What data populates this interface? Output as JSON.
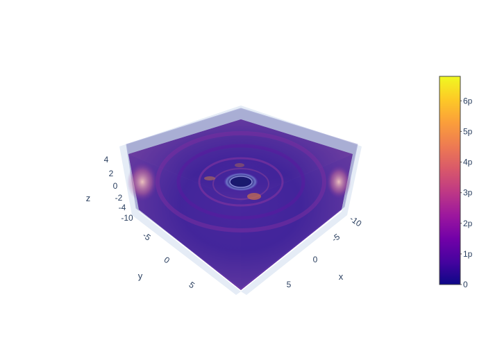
{
  "chart_data": {
    "type": "volume",
    "title": "",
    "scene": {
      "x_axis": {
        "label": "x",
        "ticks": [
          "-10",
          "-5",
          "0",
          "5"
        ],
        "range": [
          -12,
          8
        ]
      },
      "y_axis": {
        "label": "y",
        "ticks": [
          "-10",
          "-5",
          "0",
          "5"
        ],
        "range": [
          -12,
          8
        ]
      },
      "z_axis": {
        "label": "z",
        "ticks": [
          "-4",
          "-2",
          "0",
          "2",
          "4"
        ],
        "range": [
          -5,
          5
        ]
      },
      "background": "#e5ecf6"
    },
    "colorbar": {
      "ticks": [
        "0",
        "1p",
        "2p",
        "3p",
        "4p",
        "5p",
        "6p"
      ],
      "tick_values": [
        0,
        1,
        2,
        3,
        4,
        5,
        6
      ],
      "range": [
        0,
        6.8
      ],
      "colorscale": [
        "#0d0887",
        "#46039f",
        "#7201a8",
        "#9c179e",
        "#bd3786",
        "#d8576b",
        "#ed7953",
        "#fb9f3a",
        "#fdca26",
        "#f0f921"
      ]
    },
    "volume_colors": {
      "dominant": "#3a0f9a",
      "mid": "#7a2a9e",
      "edge_glow": "#e8a4a8",
      "shell": "#3c3c96"
    }
  }
}
